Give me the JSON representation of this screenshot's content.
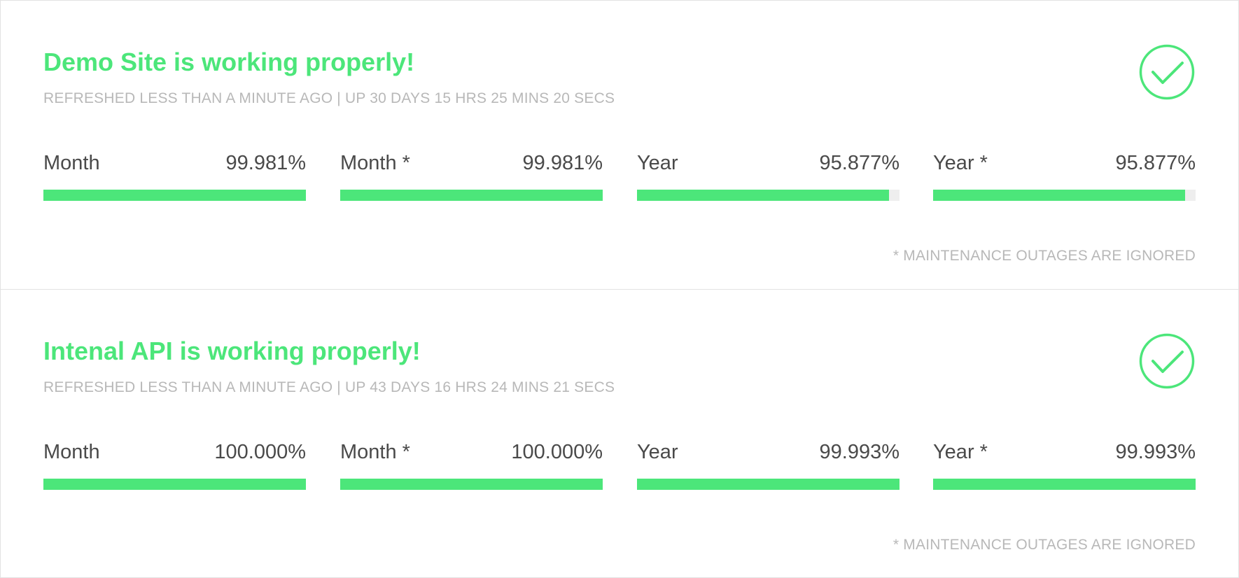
{
  "theme": {
    "accent": "#4ce67a",
    "bar_track": "#eeeeee",
    "muted_text": "#b8b8b8",
    "body_text": "#4a4a4a"
  },
  "monitors": [
    {
      "title": "Demo Site is working properly!",
      "subtitle": "REFRESHED LESS THAN A MINUTE AGO | UP 30 DAYS 15 HRS 25 MINS 20 SECS",
      "status_icon": "check-circle-icon",
      "metrics": [
        {
          "label": "Month",
          "value": "99.981%",
          "percent": 99.981
        },
        {
          "label": "Month *",
          "value": "99.981%",
          "percent": 99.981
        },
        {
          "label": "Year",
          "value": "95.877%",
          "percent": 95.877
        },
        {
          "label": "Year *",
          "value": "95.877%",
          "percent": 95.877
        }
      ],
      "footnote": "* MAINTENANCE OUTAGES ARE IGNORED"
    },
    {
      "title": "Intenal API is working properly!",
      "subtitle": "REFRESHED LESS THAN A MINUTE AGO | UP 43 DAYS 16 HRS 24 MINS 21 SECS",
      "status_icon": "check-circle-icon",
      "metrics": [
        {
          "label": "Month",
          "value": "100.000%",
          "percent": 100
        },
        {
          "label": "Month *",
          "value": "100.000%",
          "percent": 100
        },
        {
          "label": "Year",
          "value": "99.993%",
          "percent": 99.993
        },
        {
          "label": "Year *",
          "value": "99.993%",
          "percent": 99.993
        }
      ],
      "footnote": "* MAINTENANCE OUTAGES ARE IGNORED"
    }
  ]
}
